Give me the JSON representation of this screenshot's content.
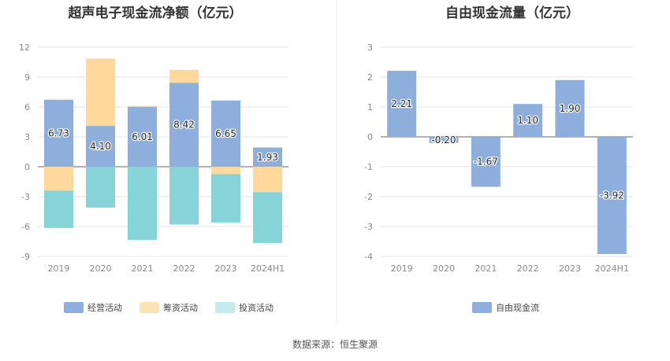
{
  "chart_data": [
    {
      "type": "bar",
      "stacked": true,
      "title": "超声电子现金流净额（亿元）",
      "categories": [
        "2019",
        "2020",
        "2021",
        "2022",
        "2023",
        "2024H1"
      ],
      "yticks": [
        "12",
        "9",
        "6",
        "3",
        "0",
        "-3",
        "-6",
        "-9"
      ],
      "ylim": [
        -9,
        12
      ],
      "series": [
        {
          "name": "经营活动",
          "color": "#8eaedb",
          "values": [
            6.73,
            4.1,
            6.01,
            8.42,
            6.65,
            1.93
          ],
          "labels": [
            "6.73",
            "4.10",
            "6.01",
            "8.42",
            "6.65",
            "1.93"
          ]
        },
        {
          "name": "筹资活动",
          "color": "#fed99b",
          "values": [
            -2.4,
            6.75,
            0.1,
            1.3,
            -0.75,
            -2.55
          ]
        },
        {
          "name": "投资活动",
          "color": "#86d4d8",
          "values": [
            -3.75,
            -4.1,
            -7.35,
            -5.8,
            -4.85,
            -5.1
          ]
        }
      ],
      "legend": [
        "经营活动",
        "筹资活动",
        "投资活动"
      ],
      "legend_colors": [
        "#8eaedb",
        "#fee3b8",
        "#c5ebee"
      ]
    },
    {
      "type": "bar",
      "title": "自由现金流量（亿元）",
      "categories": [
        "2019",
        "2020",
        "2021",
        "2022",
        "2023",
        "2024H1"
      ],
      "yticks": [
        "3",
        "2",
        "1",
        "0",
        "-1",
        "-2",
        "-3",
        "-4"
      ],
      "ylim": [
        -4,
        3
      ],
      "series": [
        {
          "name": "自由现金流",
          "color": "#8eaedb",
          "values": [
            2.21,
            -0.2,
            -1.67,
            1.1,
            1.9,
            -3.92
          ],
          "labels": [
            "2.21",
            "-0.20",
            "-1.67",
            "1.10",
            "1.90",
            "-3.92"
          ]
        }
      ],
      "legend": [
        "自由现金流"
      ],
      "legend_colors": [
        "#8eaedb"
      ]
    }
  ],
  "source": "数据来源：恒生聚源"
}
